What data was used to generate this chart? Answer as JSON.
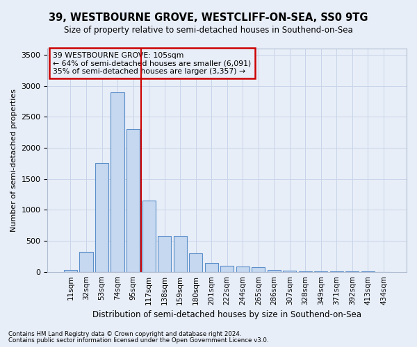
{
  "title": "39, WESTBOURNE GROVE, WESTCLIFF-ON-SEA, SS0 9TG",
  "subtitle": "Size of property relative to semi-detached houses in Southend-on-Sea",
  "xlabel": "Distribution of semi-detached houses by size in Southend-on-Sea",
  "ylabel": "Number of semi-detached properties",
  "footnote1": "Contains HM Land Registry data © Crown copyright and database right 2024.",
  "footnote2": "Contains public sector information licensed under the Open Government Licence v3.0.",
  "annotation_title": "39 WESTBOURNE GROVE: 105sqm",
  "annotation_line1": "← 64% of semi-detached houses are smaller (6,091)",
  "annotation_line2": "35% of semi-detached houses are larger (3,357) →",
  "bar_categories": [
    "11sqm",
    "32sqm",
    "53sqm",
    "74sqm",
    "95sqm",
    "117sqm",
    "138sqm",
    "159sqm",
    "180sqm",
    "201sqm",
    "222sqm",
    "244sqm",
    "265sqm",
    "286sqm",
    "307sqm",
    "328sqm",
    "349sqm",
    "371sqm",
    "392sqm",
    "413sqm",
    "434sqm"
  ],
  "bar_values": [
    30,
    320,
    1750,
    2900,
    2300,
    1150,
    575,
    575,
    295,
    145,
    100,
    90,
    75,
    30,
    15,
    10,
    5,
    5,
    5,
    3,
    2
  ],
  "bar_color": "#c5d8f0",
  "bar_edge_color": "#5b8fc9",
  "vline_color": "#cc0000",
  "annotation_box_color": "#cc0000",
  "vline_pos": 4.5,
  "ylim": [
    0,
    3600
  ],
  "yticks": [
    0,
    500,
    1000,
    1500,
    2000,
    2500,
    3000,
    3500
  ],
  "grid_color": "#c8d4e8",
  "bg_color": "#e8eef8"
}
